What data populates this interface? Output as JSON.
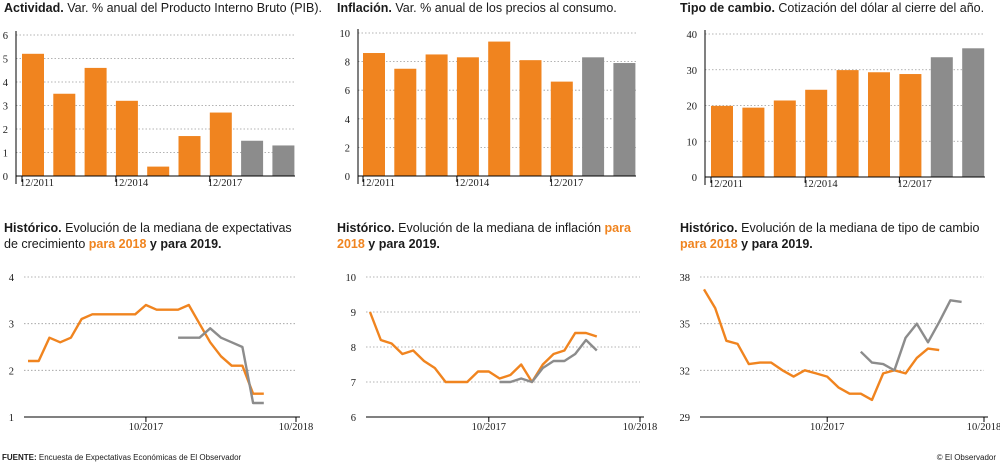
{
  "colors": {
    "orange": "#f0841f",
    "gray": "#8c8c8c",
    "grid": "#9a9a9a",
    "axis": "#000000"
  },
  "charts": {
    "c1": {
      "title_bold": "Actividad.",
      "title_rest": " Var. % anual del Producto Interno Bruto (PIB)."
    },
    "c2": {
      "title_bold": "Inflación.",
      "title_rest": " Var. % anual de los precios al consumo."
    },
    "c3": {
      "title_bold": "Tipo de cambio.",
      "title_rest": " Cotización del dólar al cierre del año."
    },
    "c4": {
      "title_bold": "Histórico.",
      "title_rest": " Evolución de la mediana de expectativas de crecimiento ",
      "hl": "para 2018",
      "title_end": " y para 2019."
    },
    "c5": {
      "title_bold": "Histórico.",
      "title_rest": " Evolución de la mediana de inflación ",
      "hl": "para 2018",
      "title_end": " y para 2019."
    },
    "c6": {
      "title_bold": "Histórico.",
      "title_rest": " Evolución de la mediana de tipo de cambio ",
      "hl": "para 2018",
      "title_end": " y para 2019."
    }
  },
  "chart_data": [
    {
      "type": "bar",
      "title": "Actividad. Var. % anual del Producto Interno Bruto (PIB).",
      "values": [
        5.2,
        3.5,
        4.6,
        3.2,
        0.4,
        1.7,
        2.7,
        1.5,
        1.3
      ],
      "colors": [
        "orange",
        "orange",
        "orange",
        "orange",
        "orange",
        "orange",
        "orange",
        "gray",
        "gray"
      ],
      "ylim": [
        0,
        6
      ],
      "yticks": [
        0,
        1,
        2,
        3,
        4,
        5,
        6
      ],
      "xticks": [
        {
          "i": 0,
          "label": "12/2011"
        },
        {
          "i": 3,
          "label": "12/2014"
        },
        {
          "i": 6,
          "label": "12/2017"
        }
      ],
      "grid": true
    },
    {
      "type": "bar",
      "title": "Inflación. Var. % anual de los precios al consumo.",
      "values": [
        8.6,
        7.5,
        8.5,
        8.3,
        9.4,
        8.1,
        6.6,
        8.3,
        7.9
      ],
      "colors": [
        "orange",
        "orange",
        "orange",
        "orange",
        "orange",
        "orange",
        "orange",
        "gray",
        "gray"
      ],
      "ylim": [
        0,
        10
      ],
      "yticks": [
        0,
        2,
        4,
        6,
        8,
        10
      ],
      "xticks": [
        {
          "i": 0,
          "label": "12/2011"
        },
        {
          "i": 3,
          "label": "12/2014"
        },
        {
          "i": 6,
          "label": "12/2017"
        }
      ],
      "grid": true
    },
    {
      "type": "bar",
      "title": "Tipo de cambio. Cotización del dólar al cierre del año.",
      "values": [
        19.9,
        19.4,
        21.4,
        24.4,
        29.9,
        29.3,
        28.8,
        33.5,
        36.0
      ],
      "colors": [
        "orange",
        "orange",
        "orange",
        "orange",
        "orange",
        "orange",
        "orange",
        "gray",
        "gray"
      ],
      "ylim": [
        0,
        40
      ],
      "yticks": [
        0,
        10,
        20,
        30,
        40
      ],
      "xticks": [
        {
          "i": 0,
          "label": "12/2011"
        },
        {
          "i": 3,
          "label": "12/2014"
        },
        {
          "i": 6,
          "label": "12/2017"
        }
      ],
      "grid": true
    },
    {
      "type": "line",
      "title": "Histórico. Evolución de la mediana de expectativas de crecimiento para 2018 y para 2019.",
      "n": 26,
      "ylim": [
        1,
        4
      ],
      "yticks": [
        1,
        2,
        3,
        4
      ],
      "xticks": [
        {
          "i": 11,
          "label": "10/2017"
        },
        {
          "i": 25,
          "label": "10/2018"
        }
      ],
      "series": [
        {
          "name": "para 2018",
          "color": "orange",
          "start": 0,
          "values": [
            2.2,
            2.2,
            2.7,
            2.6,
            2.7,
            3.1,
            3.2,
            3.2,
            3.2,
            3.2,
            3.2,
            3.4,
            3.3,
            3.3,
            3.3,
            3.4,
            3.0,
            2.6,
            2.3,
            2.1,
            2.1,
            1.5,
            1.5
          ]
        },
        {
          "name": "para 2019",
          "color": "gray",
          "start": 14,
          "values": [
            2.7,
            2.7,
            2.7,
            2.9,
            2.7,
            2.6,
            2.5,
            1.3,
            1.3
          ]
        }
      ]
    },
    {
      "type": "line",
      "title": "Histórico. Evolución de la mediana de inflación para 2018 y para 2019.",
      "n": 26,
      "ylim": [
        6,
        10
      ],
      "yticks": [
        6,
        7,
        8,
        9,
        10
      ],
      "xticks": [
        {
          "i": 11,
          "label": "10/2017"
        },
        {
          "i": 25,
          "label": "10/2018"
        }
      ],
      "series": [
        {
          "name": "para 2018",
          "color": "orange",
          "start": 0,
          "values": [
            9.0,
            8.2,
            8.1,
            7.8,
            7.9,
            7.6,
            7.4,
            7.0,
            7.0,
            7.0,
            7.3,
            7.3,
            7.1,
            7.2,
            7.5,
            7.0,
            7.5,
            7.8,
            7.9,
            8.4,
            8.4,
            8.3
          ]
        },
        {
          "name": "para 2019",
          "color": "gray",
          "start": 12,
          "values": [
            7.0,
            7.0,
            7.1,
            7.0,
            7.4,
            7.6,
            7.6,
            7.8,
            8.2,
            7.9
          ]
        }
      ]
    },
    {
      "type": "line",
      "title": "Histórico. Evolución de la mediana de tipo de cambio para 2018 y para 2019.",
      "n": 26,
      "ylim": [
        29,
        38
      ],
      "yticks": [
        29,
        32,
        35,
        38
      ],
      "xticks": [
        {
          "i": 11,
          "label": "10/2017"
        },
        {
          "i": 25,
          "label": "10/2018"
        }
      ],
      "series": [
        {
          "name": "para 2018",
          "color": "orange",
          "start": 0,
          "values": [
            37.2,
            36.0,
            33.9,
            33.7,
            32.4,
            32.5,
            32.5,
            32.0,
            31.6,
            32.0,
            31.8,
            31.6,
            30.9,
            30.5,
            30.5,
            30.1,
            31.8,
            32.0,
            31.8,
            32.8,
            33.4,
            33.3
          ]
        },
        {
          "name": "para 2019",
          "color": "gray",
          "start": 14,
          "values": [
            33.2,
            32.5,
            32.4,
            32.0,
            34.1,
            35.0,
            33.8,
            35.1,
            36.5,
            36.4
          ]
        }
      ]
    }
  ],
  "footer": {
    "source_label": "FUENTE:",
    "source_text": " Encuesta de Expectativas Económicas de El Observador",
    "credit": "© El Observador"
  }
}
